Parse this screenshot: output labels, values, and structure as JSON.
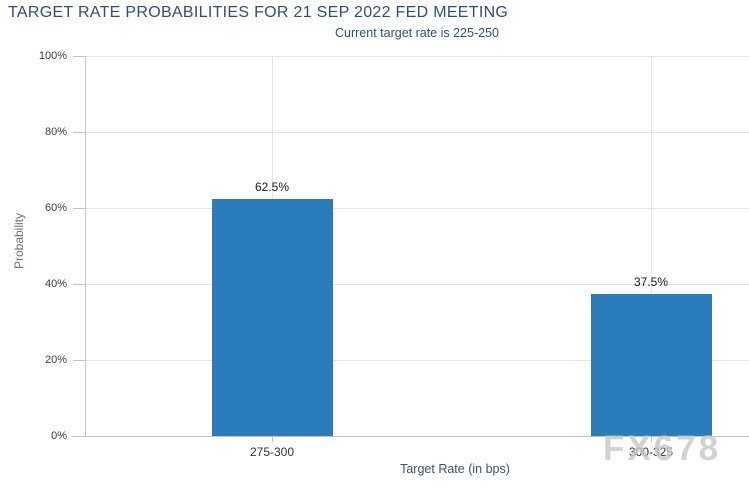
{
  "watermark": {
    "text": "FX678"
  },
  "chart_data": {
    "type": "bar",
    "title": "TARGET RATE PROBABILITIES FOR 21 SEP 2022 FED MEETING",
    "subtitle": "Current target rate is 225-250",
    "xlabel": "Target Rate (in bps)",
    "ylabel": "Probability",
    "categories": [
      "275-300",
      "300-325"
    ],
    "values": [
      62.5,
      37.5
    ],
    "value_labels": [
      "62.5%",
      "37.5%"
    ],
    "ylim": [
      0,
      100
    ],
    "yticks": [
      {
        "value": 0,
        "label": "0%"
      },
      {
        "value": 20,
        "label": "20%"
      },
      {
        "value": 40,
        "label": "40%"
      },
      {
        "value": 60,
        "label": "60%"
      },
      {
        "value": 80,
        "label": "80%"
      },
      {
        "value": 100,
        "label": "100%"
      }
    ],
    "grid": true,
    "legend": "none",
    "bar_color": "#2a7db8",
    "colors": {
      "title": "#2d5078",
      "subtitle": "#2d5078",
      "axis_title": "#3a556e",
      "tick_label": "#3c3c3c",
      "gridline": "#e4e4e4",
      "axis_line": "#c4c4c4",
      "watermark": "#c6c8cb"
    }
  }
}
